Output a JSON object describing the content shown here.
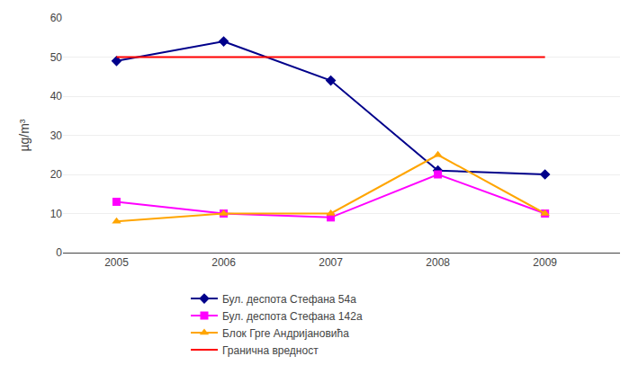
{
  "chart_data": {
    "type": "line",
    "x": [
      2005,
      2006,
      2007,
      2008,
      2009
    ],
    "series": [
      {
        "name": "Бул. деспота Стефана 54а",
        "color": "#00008B",
        "marker": "diamond",
        "values": [
          49,
          54,
          44,
          21,
          20
        ]
      },
      {
        "name": "Бул. деспота Стефана 142а",
        "color": "#FF00FF",
        "marker": "square",
        "values": [
          13,
          10,
          9,
          20,
          10
        ]
      },
      {
        "name": "Блок Грге Андријановића",
        "color": "#FFA500",
        "marker": "triangle-up",
        "values": [
          8,
          10,
          10,
          25,
          10
        ]
      },
      {
        "name": "Гранична вредност",
        "color": "#FF0000",
        "values": [
          50,
          50,
          50,
          50,
          50
        ]
      }
    ],
    "y_label": "µg/m³",
    "xlim": [
      2004.5,
      2009.7
    ],
    "xticks": [
      2005,
      2006,
      2007,
      2008,
      2009
    ],
    "ylim": [
      0,
      60
    ],
    "yticks": [
      0,
      10,
      20,
      30,
      40,
      50,
      60
    ],
    "grid": true,
    "legend": "bottom"
  }
}
